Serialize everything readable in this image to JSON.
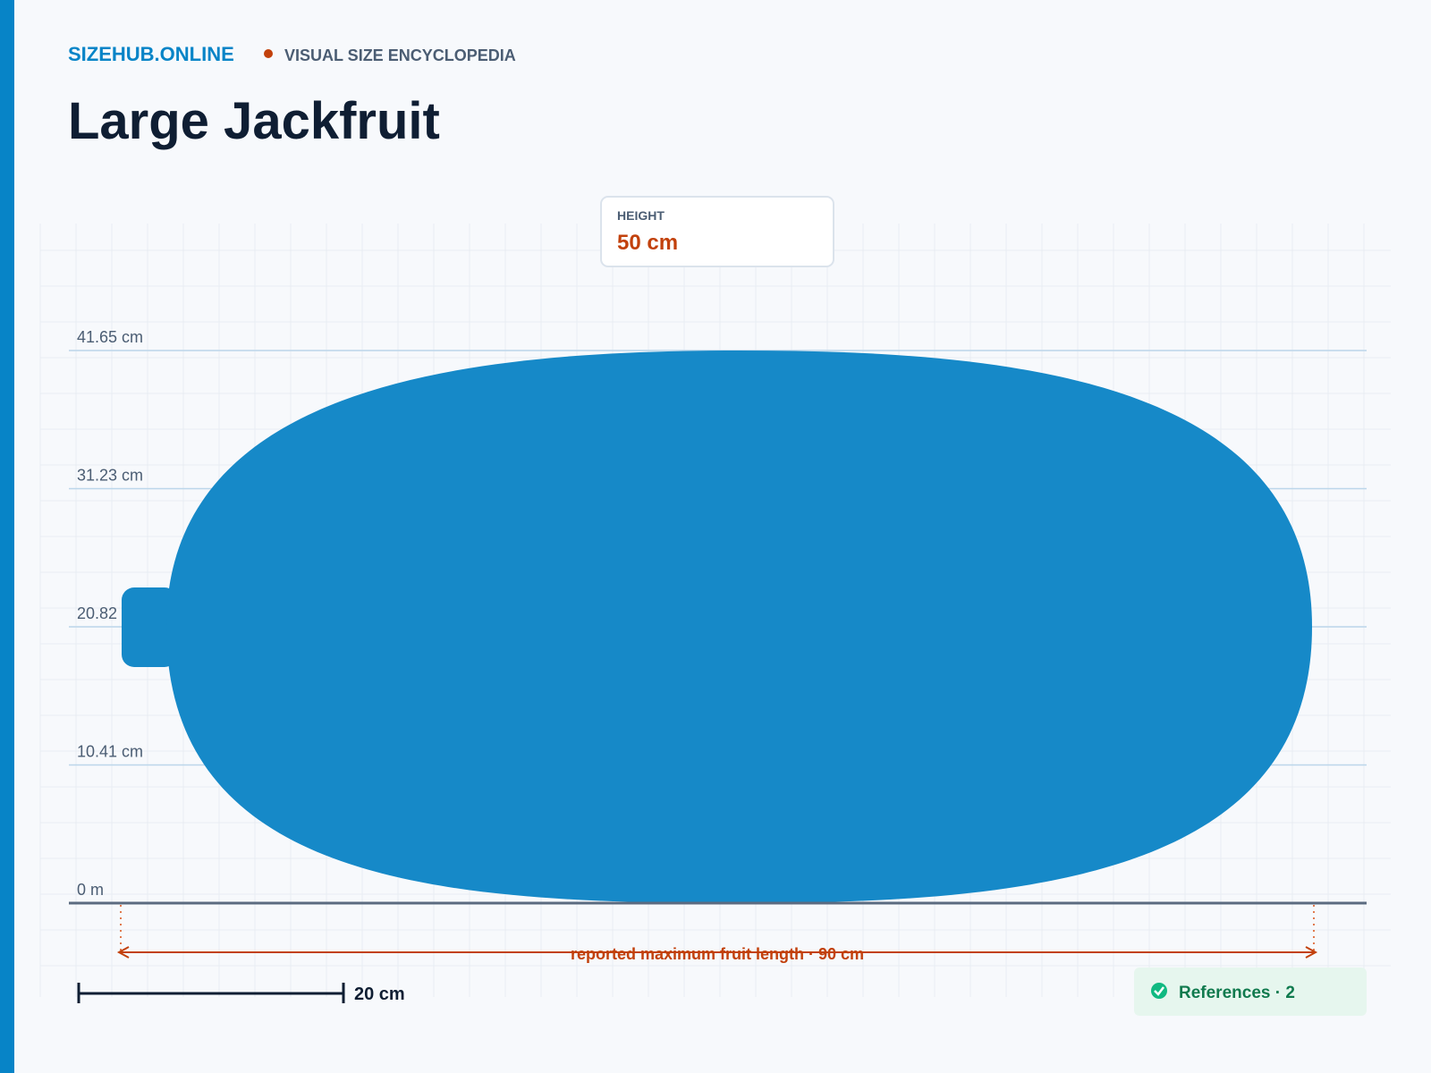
{
  "header": {
    "site": "SIZEHUB.ONLINE",
    "section": "VISUAL SIZE ENCYCLOPEDIA"
  },
  "title": "Large Jackfruit",
  "height_card": {
    "label": "HEIGHT",
    "value": "50 cm"
  },
  "axis_labels": [
    "41.65 cm",
    "31.23 cm",
    "20.82 cm",
    "10.41 cm",
    "0 m"
  ],
  "length_annotation": "reported maximum fruit length · 90 cm",
  "scale_bar": "20 cm",
  "references": "References · 2"
}
